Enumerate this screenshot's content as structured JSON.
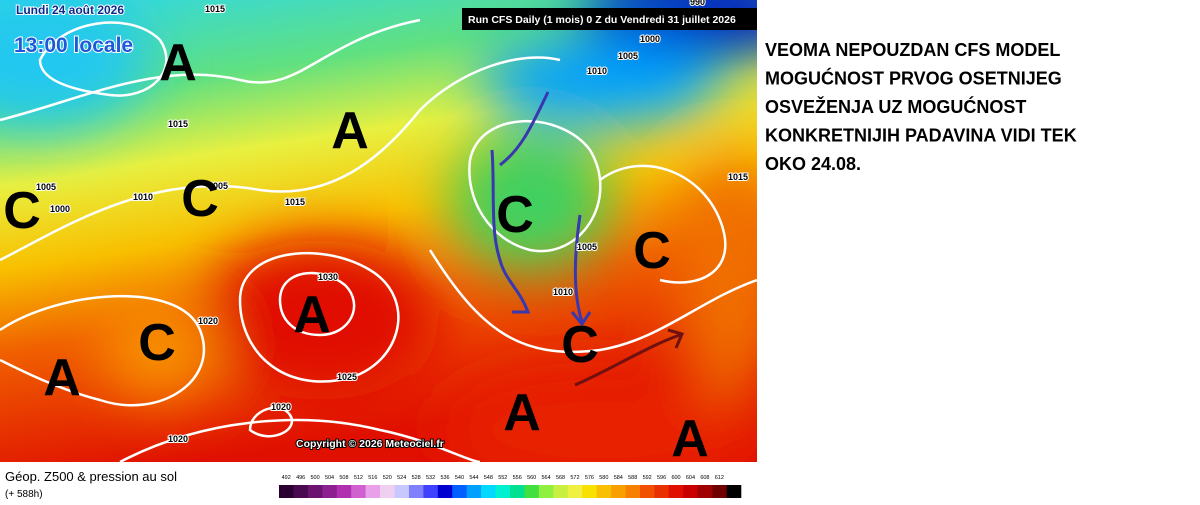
{
  "map": {
    "date": "Lundi 24 août 2026",
    "time": "13:00 locale",
    "run": "Run CFS Daily (1 mois) 0 Z du Vendredi 31 juillet 2026",
    "copyright": "Copyright © 2026 Meteociel.fr",
    "systems": [
      "A",
      "A",
      "C",
      "C",
      "C",
      "C",
      "A",
      "C",
      "A",
      "C",
      "A",
      "A"
    ],
    "isobars": [
      "1015",
      "1015",
      "1005",
      "1000",
      "1010",
      "1005",
      "1015",
      "990",
      "1000",
      "1005",
      "1010",
      "1015",
      "1005",
      "1010",
      "1030",
      "1020",
      "1025",
      "1020",
      "1020"
    ]
  },
  "legend": {
    "title": "Géop. Z500 & pression au sol",
    "lead": "(+ 588h)",
    "labels": [
      "492",
      "496",
      "500",
      "504",
      "508",
      "512",
      "516",
      "520",
      "524",
      "528",
      "532",
      "536",
      "540",
      "544",
      "548",
      "552",
      "556",
      "560",
      "564",
      "568",
      "572",
      "576",
      "580",
      "584",
      "588",
      "592",
      "596",
      "600",
      "604",
      "608",
      "612"
    ],
    "colors": [
      "#2a0030",
      "#4a0a50",
      "#6a1470",
      "#8c2090",
      "#b030b0",
      "#d060d0",
      "#e8a0e8",
      "#f0d0f0",
      "#c8c8ff",
      "#8080ff",
      "#4040ff",
      "#0000d0",
      "#0060ff",
      "#00a0ff",
      "#00d8ff",
      "#00f0d0",
      "#00e090",
      "#40e040",
      "#90f040",
      "#c8f040",
      "#f0f040",
      "#f8e000",
      "#f8c000",
      "#f8a000",
      "#f88000",
      "#f05000",
      "#e83000",
      "#e01000",
      "#c80000",
      "#a00000",
      "#700000",
      "#000000"
    ]
  },
  "note": {
    "lines": [
      "VEOMA NEPOUZDAN CFS MODEL",
      "MOGUĆNOST PRVOG OSETNIJEG",
      "OSVEŽENJA UZ MOGUĆNOST",
      "KONKRETNIJIH PADAVINA VIDI TEK",
      "OKO 24.08."
    ]
  }
}
